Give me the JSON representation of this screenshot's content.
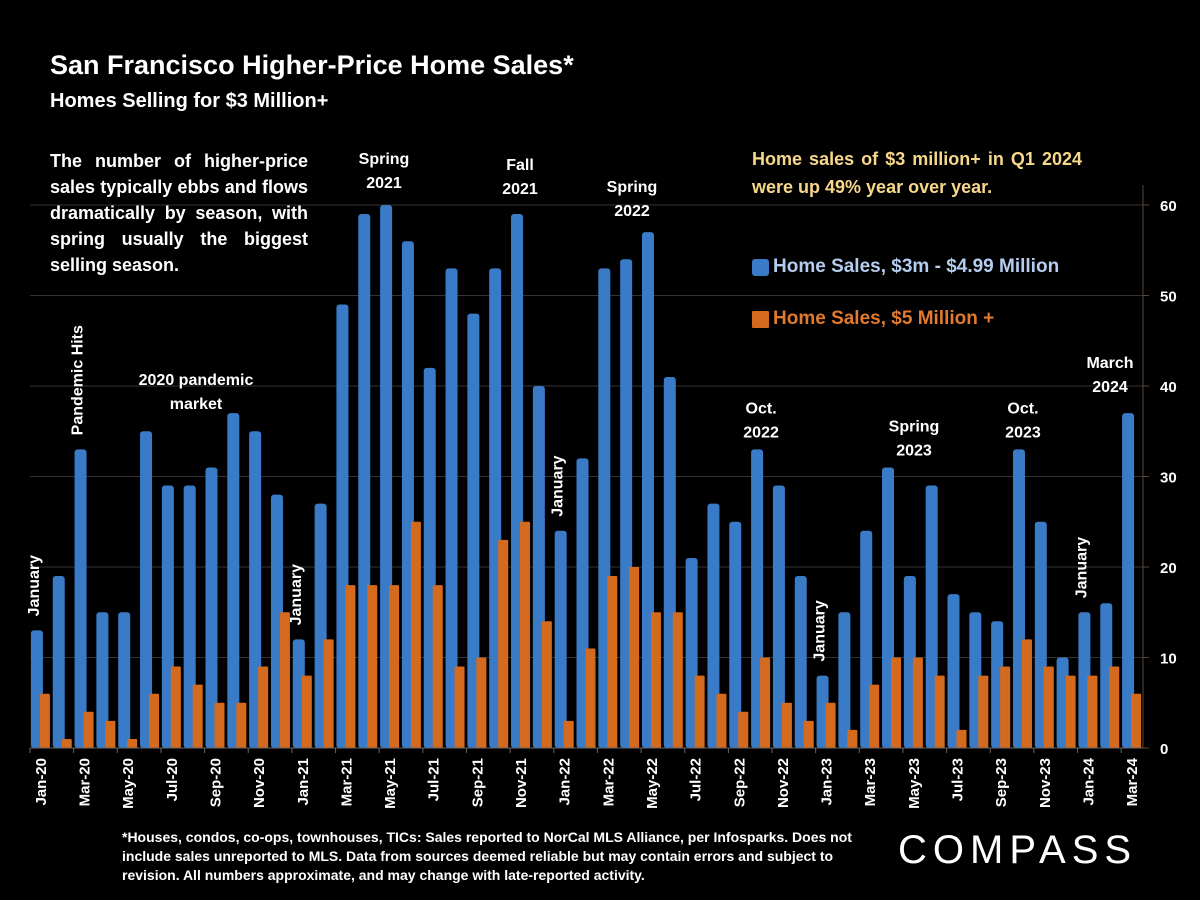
{
  "header": {
    "title": "San Francisco Higher-Price Home Sales*",
    "subtitle": "Homes Selling for $3 Million+"
  },
  "note": "The number of higher-price sales typically ebbs and flows dramatically by season, with spring usually the biggest selling season.",
  "callout": "Home sales of $3 million+ in Q1 2024 were up 49% year over year.",
  "footer": "*Houses, condos, co-ops, townhouses, TICs:  Sales reported to NorCal MLS Alliance, per Infosparks. Does not include sales unreported to MLS. Data from sources deemed reliable but may contain errors and subject to revision.  All numbers approximate, and may change with late-reported activity.",
  "brand": "COMPASS",
  "colors": {
    "blue": "#3a7bc8",
    "orange": "#d46a1e",
    "callout": "#f7d78a",
    "legend_blue_text": "#b4cdef",
    "legend_orange_text": "#e07a2e"
  },
  "chart_data": {
    "type": "bar",
    "title": "San Francisco Higher-Price Home Sales*",
    "subtitle": "Homes Selling for $3 Million+",
    "xlabel": "",
    "ylabel": "",
    "ylim": [
      0,
      60
    ],
    "yticks": [
      0,
      10,
      20,
      30,
      40,
      50,
      60
    ],
    "y_axis_side": "right",
    "grid": true,
    "legend_placement": "top-right",
    "categories": [
      "Jan-20",
      "Feb-20",
      "Mar-20",
      "Apr-20",
      "May-20",
      "Jun-20",
      "Jul-20",
      "Aug-20",
      "Sep-20",
      "Oct-20",
      "Nov-20",
      "Dec-20",
      "Jan-21",
      "Feb-21",
      "Mar-21",
      "Apr-21",
      "May-21",
      "Jun-21",
      "Jul-21",
      "Aug-21",
      "Sep-21",
      "Oct-21",
      "Nov-21",
      "Dec-21",
      "Jan-22",
      "Feb-22",
      "Mar-22",
      "Apr-22",
      "May-22",
      "Jun-22",
      "Jul-22",
      "Aug-22",
      "Sep-22",
      "Oct-22",
      "Nov-22",
      "Dec-22",
      "Jan-23",
      "Feb-23",
      "Mar-23",
      "Apr-23",
      "May-23",
      "Jun-23",
      "Jul-23",
      "Aug-23",
      "Sep-23",
      "Oct-23",
      "Nov-23",
      "Dec-23",
      "Jan-24",
      "Feb-24",
      "Mar-24"
    ],
    "tick_labels": [
      "Jan-20",
      "Mar-20",
      "May-20",
      "Jul-20",
      "Sep-20",
      "Nov-20",
      "Jan-21",
      "Mar-21",
      "May-21",
      "Jul-21",
      "Sep-21",
      "Nov-21",
      "Jan-22",
      "Mar-22",
      "May-22",
      "Jul-22",
      "Sep-22",
      "Nov-22",
      "Jan-23",
      "Mar-23",
      "May-23",
      "Jul-23",
      "Sep-23",
      "Nov-23",
      "Jan-24",
      "Mar-24"
    ],
    "series": [
      {
        "name": "Home Sales, $3m - $4.99 Million",
        "color": "#3a7bc8",
        "values": [
          13,
          19,
          33,
          15,
          15,
          35,
          29,
          29,
          31,
          37,
          35,
          28,
          12,
          27,
          49,
          59,
          60,
          56,
          42,
          53,
          48,
          53,
          59,
          40,
          24,
          32,
          53,
          54,
          57,
          41,
          21,
          27,
          25,
          33,
          29,
          19,
          8,
          15,
          24,
          31,
          19,
          29,
          17,
          15,
          14,
          33,
          25,
          10,
          15,
          16,
          37
        ]
      },
      {
        "name": "Home Sales, $5 Million +",
        "color": "#d46a1e",
        "values": [
          6,
          1,
          4,
          3,
          1,
          6,
          9,
          7,
          5,
          5,
          9,
          15,
          8,
          12,
          18,
          18,
          18,
          25,
          18,
          9,
          10,
          23,
          25,
          14,
          3,
          11,
          19,
          20,
          15,
          15,
          8,
          6,
          4,
          10,
          5,
          3,
          5,
          2,
          7,
          10,
          10,
          8,
          2,
          8,
          9,
          12,
          9,
          8,
          8,
          9,
          6
        ]
      }
    ],
    "annotations": [
      {
        "text": "January",
        "at": "Jan-20",
        "rotated": true
      },
      {
        "text": "Pandemic Hits",
        "at": "Mar-20",
        "rotated": true
      },
      {
        "text": "2020 pandemic market",
        "lines": [
          "2020 pandemic",
          "market"
        ],
        "at": "Jul-20"
      },
      {
        "text": "January",
        "at": "Jan-21",
        "rotated": true
      },
      {
        "text": "Spring 2021",
        "lines": [
          "Spring",
          "2021"
        ],
        "at": "Apr-21"
      },
      {
        "text": "Fall 2021",
        "lines": [
          "Fall",
          "2021"
        ],
        "at": "Nov-21"
      },
      {
        "text": "January",
        "at": "Jan-22",
        "rotated": true
      },
      {
        "text": "Spring 2022",
        "lines": [
          "Spring",
          "2022"
        ],
        "at": "Apr-22"
      },
      {
        "text": "Oct. 2022",
        "lines": [
          "Oct.",
          "2022"
        ],
        "at": "Oct-22"
      },
      {
        "text": "January",
        "at": "Jan-23",
        "rotated": true
      },
      {
        "text": "Spring 2023",
        "lines": [
          "Spring",
          "2023"
        ],
        "at": "May-23"
      },
      {
        "text": "Oct. 2023",
        "lines": [
          "Oct.",
          "2023"
        ],
        "at": "Oct-23"
      },
      {
        "text": "January",
        "at": "Jan-24",
        "rotated": true
      },
      {
        "text": "March 2024",
        "lines": [
          "March",
          "2024"
        ],
        "at": "Mar-24"
      }
    ]
  }
}
